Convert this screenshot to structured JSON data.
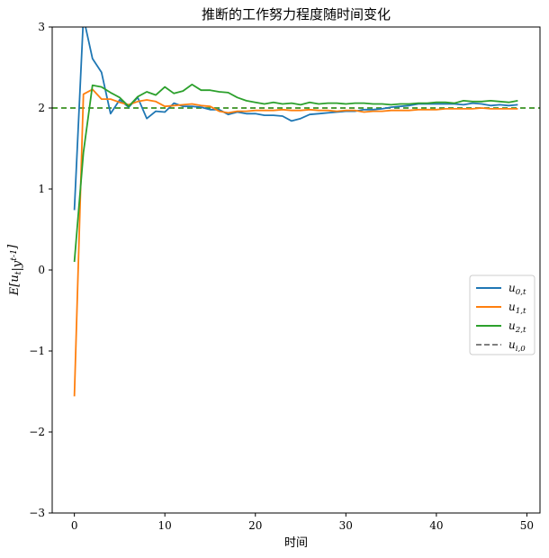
{
  "chart_data": {
    "type": "line",
    "title": "推断的工作努力程度随时间变化",
    "xlabel": "时间",
    "ylabel": "E[u_t|y^{t-1}]",
    "xlim": [
      -2.45,
      51.45
    ],
    "ylim": [
      -3,
      3
    ],
    "xticks": [
      0,
      10,
      20,
      30,
      40,
      50
    ],
    "xtick_labels": [
      "0",
      "10",
      "20",
      "30",
      "40",
      "50"
    ],
    "yticks": [
      -3,
      -2,
      -1,
      0,
      1,
      2,
      3
    ],
    "ytick_labels": [
      "−3",
      "−2",
      "−1",
      "0",
      "1",
      "2",
      "3"
    ],
    "legend_position": "center-right",
    "grid": false,
    "x": [
      0,
      1,
      2,
      3,
      4,
      5,
      6,
      7,
      8,
      9,
      10,
      11,
      12,
      13,
      14,
      15,
      16,
      17,
      18,
      19,
      20,
      21,
      22,
      23,
      24,
      25,
      26,
      27,
      28,
      29,
      30,
      31,
      32,
      33,
      34,
      35,
      36,
      37,
      38,
      39,
      40,
      41,
      42,
      43,
      44,
      45,
      46,
      47,
      48,
      49
    ],
    "series": [
      {
        "name": "u_{0,t}",
        "color": "#1f77b4",
        "style": "solid",
        "values": [
          0.74,
          3.12,
          2.61,
          2.44,
          1.93,
          2.1,
          2.01,
          2.13,
          1.87,
          1.96,
          1.95,
          2.06,
          2.02,
          2.02,
          2.01,
          1.98,
          1.98,
          1.92,
          1.95,
          1.93,
          1.93,
          1.91,
          1.91,
          1.9,
          1.84,
          1.87,
          1.92,
          1.93,
          1.94,
          1.95,
          1.96,
          1.96,
          1.98,
          1.98,
          1.99,
          2.01,
          2.02,
          2.03,
          2.05,
          2.05,
          2.05,
          2.05,
          2.05,
          2.04,
          2.06,
          2.05,
          2.03,
          2.04,
          2.03,
          2.04
        ]
      },
      {
        "name": "u_{1,t}",
        "color": "#ff7f0e",
        "style": "solid",
        "values": [
          -1.56,
          2.17,
          2.23,
          2.11,
          2.11,
          2.07,
          2.04,
          2.08,
          2.1,
          2.08,
          2.02,
          2.03,
          2.04,
          2.05,
          2.03,
          2.02,
          1.96,
          1.94,
          1.96,
          1.96,
          1.97,
          1.97,
          1.97,
          1.98,
          1.97,
          1.97,
          1.98,
          1.97,
          1.97,
          1.96,
          1.97,
          1.97,
          1.95,
          1.96,
          1.96,
          1.97,
          1.97,
          1.97,
          1.98,
          1.98,
          1.98,
          1.99,
          1.99,
          1.99,
          1.99,
          2.0,
          1.99,
          1.99,
          1.99,
          1.99
        ]
      },
      {
        "name": "u_{2,t}",
        "color": "#2ca02c",
        "style": "solid",
        "values": [
          0.1,
          1.45,
          2.28,
          2.26,
          2.19,
          2.13,
          2.02,
          2.14,
          2.2,
          2.16,
          2.26,
          2.18,
          2.21,
          2.29,
          2.22,
          2.22,
          2.2,
          2.19,
          2.13,
          2.09,
          2.07,
          2.05,
          2.07,
          2.05,
          2.06,
          2.04,
          2.07,
          2.05,
          2.06,
          2.06,
          2.05,
          2.06,
          2.06,
          2.05,
          2.05,
          2.04,
          2.05,
          2.05,
          2.06,
          2.06,
          2.07,
          2.07,
          2.06,
          2.09,
          2.08,
          2.08,
          2.09,
          2.08,
          2.07,
          2.09
        ]
      },
      {
        "name": "u_{i,0}",
        "color": "#808080",
        "style": "dashed",
        "values": [
          2,
          2,
          2,
          2,
          2,
          2,
          2,
          2,
          2,
          2,
          2,
          2,
          2,
          2,
          2,
          2,
          2,
          2,
          2,
          2,
          2,
          2,
          2,
          2,
          2,
          2,
          2,
          2,
          2,
          2,
          2,
          2,
          2,
          2,
          2,
          2,
          2,
          2,
          2,
          2,
          2,
          2,
          2,
          2,
          2,
          2,
          2,
          2,
          2,
          2
        ]
      }
    ],
    "hlines": [
      {
        "y": 2,
        "color": "#1f77b4",
        "style": "dashed"
      },
      {
        "y": 2,
        "color": "#ff7f0e",
        "style": "dashed"
      },
      {
        "y": 2,
        "color": "#2ca02c",
        "style": "dashed"
      }
    ]
  }
}
